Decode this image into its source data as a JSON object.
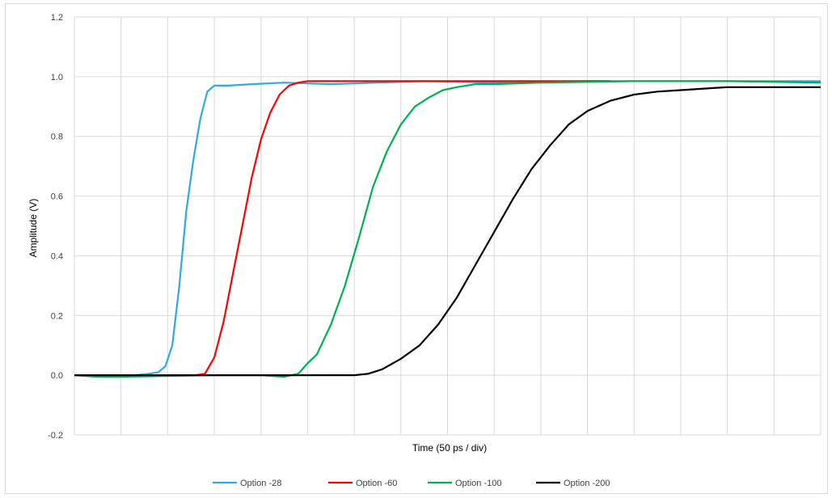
{
  "chart_data": {
    "type": "line",
    "title": "",
    "xlabel": "Time (50 ps / div)",
    "ylabel": "Amplitude (V)",
    "ylim": [
      -0.2,
      1.2
    ],
    "yticks": [
      "-0.2",
      "0.0",
      "0.2",
      "0.4",
      "0.6",
      "0.8",
      "1.0",
      "1.2"
    ],
    "ytick_values": [
      -0.2,
      0.0,
      0.2,
      0.4,
      0.6,
      0.8,
      1.0,
      1.2
    ],
    "x_divisions": 16,
    "x_tick_labels_shown": false,
    "grid": true,
    "legend_position": "bottom",
    "series": [
      {
        "name": "Option -28",
        "color": "#2eaae1",
        "x": [
          0,
          0.5,
          1,
          1.3,
          1.6,
          1.8,
          1.95,
          2.1,
          2.25,
          2.4,
          2.55,
          2.7,
          2.85,
          3.0,
          3.3,
          3.8,
          4.5,
          5.5,
          6.5,
          7.5,
          9.0,
          11.0,
          13.0,
          16.0
        ],
        "y": [
          0.0,
          -0.005,
          -0.005,
          0.0,
          0.005,
          0.01,
          0.03,
          0.1,
          0.3,
          0.55,
          0.72,
          0.86,
          0.95,
          0.97,
          0.97,
          0.975,
          0.98,
          0.975,
          0.98,
          0.985,
          0.98,
          0.985,
          0.985,
          0.985
        ]
      },
      {
        "name": "Option -60",
        "color": "#ff0000",
        "x": [
          0,
          2,
          2.6,
          2.8,
          3.0,
          3.2,
          3.4,
          3.6,
          3.8,
          4.0,
          4.2,
          4.4,
          4.6,
          4.8,
          5.0,
          6.0,
          8.0,
          10.0,
          11.5
        ],
        "y": [
          0.0,
          0.0,
          0.0,
          0.005,
          0.06,
          0.18,
          0.34,
          0.5,
          0.66,
          0.79,
          0.88,
          0.94,
          0.97,
          0.98,
          0.985,
          0.985,
          0.985,
          0.985,
          0.985
        ]
      },
      {
        "name": "Option -100",
        "color": "#00b050",
        "x": [
          0,
          0.5,
          1.0,
          3.0,
          4.0,
          4.5,
          4.8,
          5.0,
          5.2,
          5.5,
          5.8,
          6.1,
          6.4,
          6.7,
          7.0,
          7.3,
          7.6,
          7.9,
          8.2,
          8.6,
          9.0,
          10.0,
          12.0,
          14.0,
          16.0
        ],
        "y": [
          0.0,
          -0.005,
          -0.005,
          0.0,
          0.0,
          -0.005,
          0.005,
          0.04,
          0.07,
          0.17,
          0.3,
          0.46,
          0.63,
          0.75,
          0.84,
          0.9,
          0.93,
          0.955,
          0.965,
          0.975,
          0.975,
          0.98,
          0.985,
          0.985,
          0.98
        ]
      },
      {
        "name": "Option -200",
        "color": "#000000",
        "x": [
          0,
          3,
          6.0,
          6.3,
          6.6,
          7.0,
          7.4,
          7.8,
          8.2,
          8.6,
          9.0,
          9.4,
          9.8,
          10.2,
          10.6,
          11.0,
          11.5,
          12.0,
          12.5,
          13.0,
          13.5,
          14.0,
          15.0,
          16.0
        ],
        "y": [
          0.0,
          0.0,
          0.0,
          0.005,
          0.02,
          0.055,
          0.1,
          0.17,
          0.26,
          0.37,
          0.48,
          0.59,
          0.69,
          0.77,
          0.84,
          0.885,
          0.92,
          0.94,
          0.95,
          0.955,
          0.96,
          0.965,
          0.965,
          0.965
        ]
      }
    ]
  }
}
